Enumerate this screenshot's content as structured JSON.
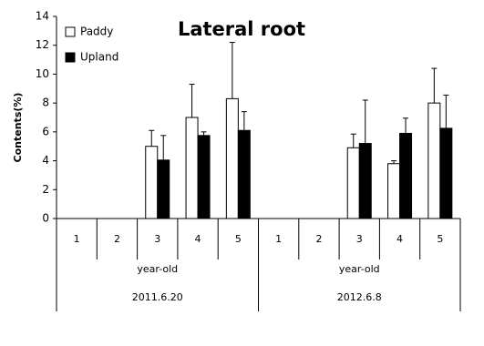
{
  "chart_data": {
    "type": "bar",
    "title": "Lateral root",
    "y_label": "Contents(%)",
    "categories": [
      "1",
      "2",
      "3",
      "4",
      "5",
      "1",
      "2",
      "3",
      "4",
      "5"
    ],
    "groups": [
      {
        "label": "year-old",
        "date": "2011.6.20",
        "size": 5
      },
      {
        "label": "year-old",
        "date": "2012.6.8",
        "size": 5
      }
    ],
    "series": [
      {
        "name": "Paddy",
        "color": "#ffffff",
        "values": [
          null,
          null,
          5.0,
          7.0,
          8.3,
          null,
          null,
          4.9,
          3.8,
          8.0
        ],
        "errors": [
          null,
          null,
          1.1,
          2.3,
          3.9,
          null,
          null,
          0.95,
          0.2,
          2.4
        ]
      },
      {
        "name": "Upland",
        "color": "#000000",
        "values": [
          null,
          null,
          4.05,
          5.75,
          6.1,
          null,
          null,
          5.2,
          5.9,
          6.25
        ],
        "errors": [
          null,
          null,
          1.7,
          0.25,
          1.3,
          null,
          null,
          3.0,
          1.05,
          2.3
        ]
      }
    ],
    "ylim": [
      0,
      14
    ],
    "yticks": [
      0,
      2,
      4,
      6,
      8,
      10,
      12,
      14
    ],
    "grid": false,
    "legend": "top-left"
  }
}
